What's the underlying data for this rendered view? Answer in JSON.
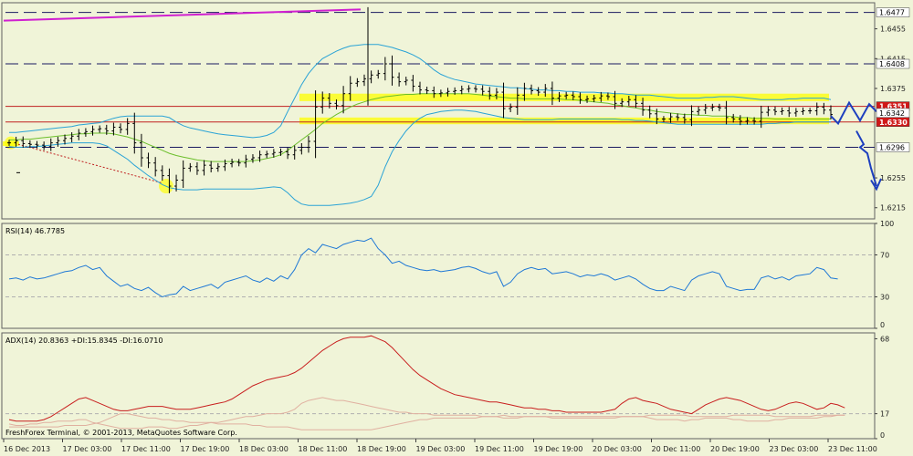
{
  "colors": {
    "background": "#f0f4d8",
    "grid": "#b0b0b0",
    "price_bar": "#000000",
    "bollinger": "#2aa3d6",
    "ma_green": "#6cbf2c",
    "resistance_line": "#c02020",
    "highlight_zone": "#ffff00",
    "magenta_trend": "#d020d0",
    "forecast_arrow": "#1d3fbf",
    "rsi_line": "#1e78d6",
    "adx_line": "#c81e1e",
    "di_line": "#e0b0a0"
  },
  "chart_data": [
    {
      "type": "line",
      "name": "price-panel",
      "ylim": [
        1.62,
        1.649
      ],
      "y_ticks": [
        "1.6455",
        "1.6415",
        "1.6375",
        "1.6255",
        "1.6215"
      ],
      "levels": [
        {
          "value": 1.6477,
          "label": "1.6477",
          "style": "dashed"
        },
        {
          "value": 1.6408,
          "label": "1.6408",
          "style": "dashed"
        },
        {
          "value": 1.6351,
          "label": "1.6351",
          "style": "red"
        },
        {
          "value": 1.6342,
          "label": "1.6342",
          "style": "hidden"
        },
        {
          "value": 1.633,
          "label": "1.6330",
          "style": "red"
        },
        {
          "value": 1.6296,
          "label": "1.6296",
          "style": "dashed"
        }
      ],
      "highlight_zones": [
        [
          1.6358,
          1.6368
        ],
        [
          1.6327,
          1.6336
        ]
      ],
      "close": [
        1.6302,
        1.6305,
        1.6301,
        1.63,
        1.6299,
        1.6297,
        1.6302,
        1.6305,
        1.6308,
        1.6311,
        1.6315,
        1.6317,
        1.632,
        1.6321,
        1.6318,
        1.6323,
        1.632,
        1.6328,
        1.6302,
        1.6282,
        1.6275,
        1.6265,
        1.6258,
        1.6244,
        1.6252,
        1.6268,
        1.627,
        1.6265,
        1.6272,
        1.6268,
        1.627,
        1.6274,
        1.6276,
        1.6275,
        1.628,
        1.6282,
        1.6286,
        1.6287,
        1.6289,
        1.629,
        1.6286,
        1.6292,
        1.6296,
        1.6304,
        1.635,
        1.6362,
        1.6355,
        1.6352,
        1.6368,
        1.6382,
        1.6384,
        1.6388,
        1.6393,
        1.6395,
        1.6408,
        1.639,
        1.6384,
        1.6386,
        1.6378,
        1.6373,
        1.6372,
        1.6368,
        1.6369,
        1.6371,
        1.6372,
        1.6374,
        1.6375,
        1.6374,
        1.6371,
        1.6366,
        1.637,
        1.6348,
        1.635,
        1.6366,
        1.6375,
        1.6372,
        1.637,
        1.6375,
        1.6362,
        1.6365,
        1.6366,
        1.6364,
        1.636,
        1.6361,
        1.6362,
        1.6365,
        1.6364,
        1.6355,
        1.6357,
        1.636,
        1.6355,
        1.6346,
        1.6341,
        1.6334,
        1.6334,
        1.6337,
        1.6336,
        1.6333,
        1.6344,
        1.6346,
        1.6349,
        1.635,
        1.6349,
        1.6336,
        1.6334,
        1.6331,
        1.6332,
        1.6331,
        1.6343,
        1.6346,
        1.6344,
        1.6345,
        1.6342,
        1.6344,
        1.6345,
        1.6345,
        1.635,
        1.6346,
        1.634
      ],
      "bb_upper": [
        1.6316,
        1.6316,
        1.6317,
        1.6318,
        1.6319,
        1.632,
        1.6321,
        1.6322,
        1.6323,
        1.6324,
        1.6326,
        1.6327,
        1.6328,
        1.6329,
        1.6332,
        1.6335,
        1.6337,
        1.6338,
        1.6338,
        1.6338,
        1.6338,
        1.6338,
        1.6338,
        1.6336,
        1.633,
        1.6325,
        1.6322,
        1.632,
        1.6318,
        1.6316,
        1.6314,
        1.6313,
        1.6312,
        1.6311,
        1.631,
        1.6309,
        1.631,
        1.6312,
        1.6316,
        1.6325,
        1.6344,
        1.6362,
        1.638,
        1.6395,
        1.6406,
        1.6415,
        1.642,
        1.6425,
        1.6429,
        1.6432,
        1.6433,
        1.6434,
        1.6434,
        1.6434,
        1.6432,
        1.643,
        1.6427,
        1.6424,
        1.642,
        1.6415,
        1.6408,
        1.64,
        1.6394,
        1.639,
        1.6387,
        1.6385,
        1.6383,
        1.6381,
        1.638,
        1.6379,
        1.6378,
        1.6377,
        1.6376,
        1.6376,
        1.6375,
        1.6374,
        1.6373,
        1.6373,
        1.6372,
        1.6372,
        1.6371,
        1.6371,
        1.637,
        1.637,
        1.637,
        1.6369,
        1.6369,
        1.6368,
        1.6368,
        1.6367,
        1.6366,
        1.6366,
        1.6366,
        1.6365,
        1.6364,
        1.6363,
        1.6362,
        1.6362,
        1.6362,
        1.6362,
        1.6363,
        1.6363,
        1.6364,
        1.6364,
        1.6364,
        1.6363,
        1.6362,
        1.6361,
        1.636,
        1.636,
        1.636,
        1.636,
        1.6361,
        1.6361,
        1.6362,
        1.6362,
        1.6362,
        1.6362,
        1.636
      ],
      "bb_lower": [
        1.6297,
        1.6296,
        1.6296,
        1.6297,
        1.6297,
        1.6298,
        1.6299,
        1.63,
        1.6301,
        1.6302,
        1.6302,
        1.6302,
        1.6302,
        1.6301,
        1.6298,
        1.6292,
        1.6286,
        1.628,
        1.6272,
        1.6265,
        1.6258,
        1.6252,
        1.6246,
        1.6242,
        1.624,
        1.6239,
        1.6239,
        1.6239,
        1.624,
        1.624,
        1.624,
        1.624,
        1.624,
        1.624,
        1.624,
        1.624,
        1.6241,
        1.6242,
        1.6243,
        1.6242,
        1.6235,
        1.6226,
        1.622,
        1.6218,
        1.6218,
        1.6218,
        1.6218,
        1.6219,
        1.622,
        1.6221,
        1.6223,
        1.6226,
        1.623,
        1.6245,
        1.627,
        1.629,
        1.6305,
        1.6318,
        1.6328,
        1.6335,
        1.634,
        1.6342,
        1.6344,
        1.6345,
        1.6346,
        1.6346,
        1.6345,
        1.6344,
        1.6342,
        1.634,
        1.6338,
        1.6336,
        1.6335,
        1.6334,
        1.6333,
        1.6333,
        1.6333,
        1.6333,
        1.6333,
        1.6334,
        1.6334,
        1.6334,
        1.6334,
        1.6334,
        1.6334,
        1.6334,
        1.6334,
        1.6334,
        1.6333,
        1.6333,
        1.6332,
        1.6332,
        1.6331,
        1.633,
        1.6329,
        1.6328,
        1.6327,
        1.6327,
        1.6327,
        1.6327,
        1.6327,
        1.6327,
        1.6327,
        1.6327,
        1.6327,
        1.6327,
        1.6327,
        1.6327,
        1.6327,
        1.6328,
        1.6328,
        1.6329,
        1.6329,
        1.633,
        1.633,
        1.633,
        1.633,
        1.633,
        1.633
      ],
      "ma": [
        1.6306,
        1.6306,
        1.6307,
        1.6307,
        1.6308,
        1.6309,
        1.631,
        1.6311,
        1.6312,
        1.6313,
        1.6314,
        1.6314,
        1.6315,
        1.6315,
        1.6315,
        1.6314,
        1.6312,
        1.631,
        1.6307,
        1.6304,
        1.63,
        1.6296,
        1.6292,
        1.6288,
        1.6285,
        1.6283,
        1.6281,
        1.6279,
        1.6278,
        1.6277,
        1.6277,
        1.6277,
        1.6277,
        1.6277,
        1.6277,
        1.6278,
        1.6279,
        1.6281,
        1.6283,
        1.6286,
        1.6292,
        1.6299,
        1.6306,
        1.6313,
        1.632,
        1.6328,
        1.6334,
        1.634,
        1.6345,
        1.635,
        1.6354,
        1.6357,
        1.636,
        1.6362,
        1.6364,
        1.6365,
        1.6366,
        1.6367,
        1.6367,
        1.6368,
        1.6368,
        1.6368,
        1.6368,
        1.6368,
        1.6368,
        1.6368,
        1.6368,
        1.6367,
        1.6366,
        1.6365,
        1.6364,
        1.6363,
        1.6362,
        1.6362,
        1.6361,
        1.6361,
        1.6361,
        1.6361,
        1.6361,
        1.6361,
        1.636,
        1.636,
        1.6359,
        1.6358,
        1.6357,
        1.6356,
        1.6355,
        1.6353,
        1.6352,
        1.635,
        1.6349,
        1.6347,
        1.6346,
        1.6344,
        1.6343,
        1.6342,
        1.6341,
        1.634,
        1.634,
        1.6339,
        1.6339,
        1.6338,
        1.6338,
        1.6338,
        1.6337,
        1.6336,
        1.6336,
        1.6335,
        1.6335,
        1.6335,
        1.6334,
        1.6334,
        1.6334,
        1.6334,
        1.6334,
        1.6334,
        1.6334,
        1.6334,
        1.6334
      ]
    },
    {
      "type": "line",
      "name": "rsi-panel",
      "label": "RSI(14) 46.7785",
      "ylim": [
        0,
        100
      ],
      "y_ticks": [
        "100",
        "70",
        "30",
        "0"
      ],
      "levels": [
        70,
        30
      ],
      "values": [
        47,
        48,
        46,
        49,
        47,
        48,
        50,
        52,
        54,
        55,
        58,
        60,
        56,
        58,
        50,
        45,
        40,
        42,
        38,
        36,
        39,
        34,
        30,
        32,
        33,
        40,
        36,
        38,
        40,
        42,
        38,
        44,
        46,
        48,
        50,
        46,
        44,
        48,
        45,
        50,
        47,
        56,
        70,
        76,
        72,
        80,
        78,
        76,
        80,
        82,
        84,
        83,
        86,
        76,
        70,
        62,
        64,
        60,
        58,
        56,
        55,
        56,
        54,
        55,
        56,
        58,
        59,
        57,
        54,
        52,
        54,
        40,
        44,
        52,
        56,
        58,
        56,
        57,
        52,
        53,
        54,
        52,
        49,
        51,
        50,
        52,
        50,
        46,
        48,
        50,
        47,
        42,
        38,
        36,
        36,
        40,
        38,
        36,
        46,
        50,
        52,
        54,
        52,
        40,
        38,
        36,
        37,
        37,
        48,
        50,
        47,
        49,
        46,
        50,
        51,
        52,
        58,
        56,
        48,
        47
      ]
    },
    {
      "type": "line",
      "name": "adx-panel",
      "label": "ADX(14) 20.8363 +DI:15.8345 -DI:16.0710",
      "ylim": [
        0,
        72
      ],
      "y_ticks": [
        "68",
        "17",
        "0"
      ],
      "levels": [
        17
      ],
      "adx": [
        13,
        12,
        12,
        12,
        12,
        13,
        15,
        18,
        21,
        24,
        27,
        28,
        26,
        24,
        22,
        20,
        19,
        19,
        20,
        21,
        22,
        22,
        22,
        21,
        20,
        20,
        20,
        21,
        22,
        23,
        24,
        25,
        27,
        30,
        33,
        36,
        38,
        40,
        41,
        42,
        43,
        45,
        48,
        52,
        56,
        60,
        63,
        66,
        68,
        69,
        69,
        69,
        70,
        68,
        66,
        62,
        57,
        52,
        47,
        43,
        40,
        37,
        34,
        32,
        30,
        29,
        28,
        27,
        26,
        25,
        25,
        24,
        23,
        22,
        21,
        21,
        20,
        20,
        19,
        19,
        18,
        18,
        18,
        18,
        18,
        18,
        19,
        20,
        24,
        27,
        28,
        26,
        25,
        24,
        22,
        20,
        19,
        18,
        17,
        20,
        23,
        25,
        27,
        28,
        27,
        26,
        24,
        22,
        20,
        19,
        20,
        22,
        24,
        25,
        24,
        22,
        20,
        21,
        24,
        23,
        21
      ],
      "pdi": [
        10,
        9,
        9,
        10,
        10,
        11,
        11,
        12,
        12,
        12,
        13,
        13,
        11,
        10,
        9,
        8,
        7,
        7,
        7,
        7,
        8,
        8,
        8,
        7,
        7,
        8,
        9,
        9,
        10,
        11,
        11,
        12,
        13,
        14,
        15,
        15,
        16,
        17,
        17,
        17,
        18,
        20,
        24,
        26,
        27,
        28,
        27,
        26,
        26,
        25,
        24,
        23,
        22,
        21,
        20,
        19,
        18,
        18,
        17,
        17,
        17,
        16,
        16,
        16,
        16,
        16,
        16,
        16,
        15,
        15,
        15,
        14,
        14,
        14,
        15,
        15,
        15,
        15,
        14,
        14,
        14,
        14,
        14,
        14,
        14,
        14,
        14,
        14,
        15,
        15,
        15,
        15,
        14,
        13,
        13,
        13,
        13,
        12,
        13,
        13,
        14,
        14,
        14,
        14,
        13,
        13,
        12,
        12,
        12,
        12,
        13,
        13,
        14,
        14,
        14,
        14,
        14,
        15,
        15,
        16,
        16
      ],
      "mdi": [
        8,
        8,
        8,
        8,
        8,
        8,
        8,
        8,
        9,
        9,
        9,
        9,
        10,
        11,
        13,
        15,
        17,
        17,
        16,
        15,
        14,
        14,
        13,
        13,
        12,
        12,
        11,
        11,
        11,
        11,
        10,
        10,
        10,
        10,
        10,
        9,
        9,
        8,
        8,
        8,
        8,
        7,
        6,
        6,
        6,
        6,
        6,
        6,
        6,
        6,
        6,
        6,
        6,
        7,
        8,
        9,
        10,
        11,
        12,
        13,
        13,
        14,
        14,
        14,
        14,
        14,
        14,
        14,
        15,
        15,
        15,
        16,
        15,
        15,
        15,
        15,
        15,
        15,
        15,
        15,
        15,
        15,
        15,
        15,
        15,
        15,
        15,
        15,
        15,
        15,
        15,
        15,
        16,
        16,
        16,
        16,
        16,
        16,
        15,
        15,
        15,
        15,
        15,
        15,
        16,
        16,
        16,
        16,
        16,
        16,
        15,
        15,
        15,
        15,
        15,
        15,
        16,
        16,
        16,
        16,
        16
      ]
    }
  ],
  "time_axis": [
    "16 Dec 2013",
    "17 Dec 03:00",
    "17 Dec 11:00",
    "17 Dec 19:00",
    "18 Dec 03:00",
    "18 Dec 11:00",
    "18 Dec 19:00",
    "19 Dec 03:00",
    "19 Dec 11:00",
    "19 Dec 19:00",
    "20 Dec 03:00",
    "20 Dec 11:00",
    "20 Dec 19:00",
    "23 Dec 03:00",
    "23 Dec 11:00"
  ],
  "copyright": "FreshForex Terminal, © 2001-2013, MetaQuotes Software Corp."
}
